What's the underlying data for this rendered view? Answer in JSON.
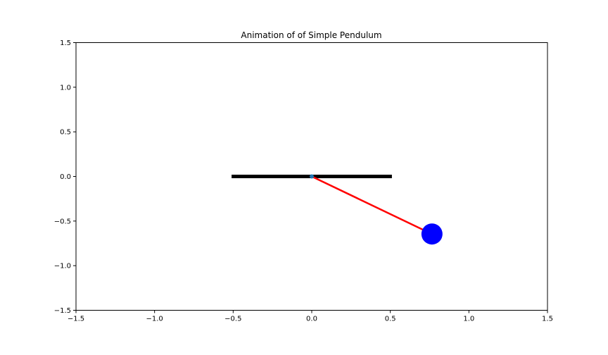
{
  "chart_data": {
    "type": "line",
    "title": "Animation of of Simple Pendulum",
    "xlabel": "",
    "ylabel": "",
    "xlim": [
      -1.5,
      1.5
    ],
    "ylim": [
      -1.5,
      1.5
    ],
    "grid": false,
    "x_ticks": [
      -1.5,
      -1.0,
      -0.5,
      0.0,
      0.5,
      1.0,
      1.5
    ],
    "x_tick_labels": [
      "−1.5",
      "−1.0",
      "−0.5",
      "0.0",
      "0.5",
      "1.0",
      "1.5"
    ],
    "y_ticks": [
      1.5,
      1.0,
      0.5,
      0.0,
      -0.5,
      -1.0,
      -1.5
    ],
    "y_tick_labels": [
      "1.5",
      "1.0",
      "0.5",
      "0.0",
      "−0.5",
      "−1.0",
      "−1.5"
    ],
    "series": [
      {
        "kind": "ceiling-bar",
        "color": "#000000",
        "x": [
          -0.51,
          0.51
        ],
        "y": [
          0.0,
          0.0
        ]
      },
      {
        "kind": "rod",
        "color": "#ff0000",
        "x": [
          0.0,
          0.765
        ],
        "y": [
          0.0,
          -0.645
        ]
      },
      {
        "kind": "pivot",
        "color": "#1f77b4",
        "x": [
          0.0
        ],
        "y": [
          0.0
        ]
      },
      {
        "kind": "bob",
        "color": "#0000ff",
        "x": [
          0.765
        ],
        "y": [
          -0.645
        ]
      }
    ]
  }
}
